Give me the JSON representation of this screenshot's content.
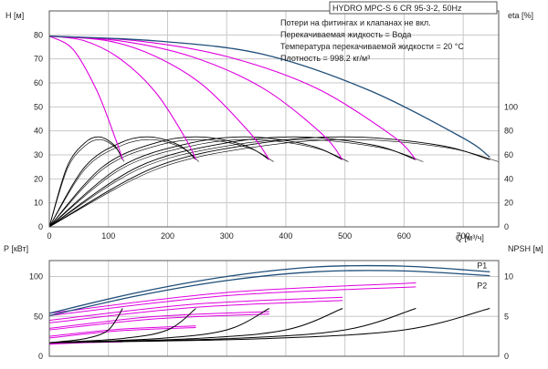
{
  "title": "HYDRO MPC-S 6 CR 95-3-2, 50Hz",
  "notes": [
    "Потери на фитингах и клапанах не вкл.",
    "Перекачиваемая жидкость = Вода",
    "Температура перекачиваемой жидкости = 20 °C",
    "Плотность = 998.2 кг/м³"
  ],
  "colors": {
    "blue": "#1f4e79",
    "magenta": "#e000e0",
    "black": "#000000",
    "grid": "#c8c8c8"
  },
  "chart_data": [
    {
      "type": "line",
      "name": "head-efficiency",
      "xlabel": "Q [м³/ч]",
      "x_ticks": [
        "0",
        "100",
        "200",
        "300",
        "400",
        "500",
        "600",
        "700"
      ],
      "xlim": [
        0,
        760
      ],
      "ylabel_left": "H [м]",
      "ylim_left": [
        0,
        90
      ],
      "y_ticks_left": [
        "0",
        "10",
        "20",
        "30",
        "40",
        "50",
        "60",
        "70",
        "80"
      ],
      "ylabel_right": "eta [%]",
      "ylim_right": [
        0,
        180
      ],
      "y_ticks_right": [
        "0",
        "20",
        "40",
        "60",
        "80",
        "100"
      ],
      "grid": true,
      "head_curves": [
        {
          "pumps": 1,
          "x": [
            0,
            40,
            80,
            110,
            124
          ],
          "y": [
            79.5,
            74,
            57,
            38,
            28
          ]
        },
        {
          "pumps": 2,
          "x": [
            0,
            60,
            120,
            180,
            230,
            248
          ],
          "y": [
            79.5,
            77.5,
            70,
            56,
            37,
            28
          ]
        },
        {
          "pumps": 3,
          "x": [
            0,
            100,
            180,
            260,
            340,
            372
          ],
          "y": [
            79.5,
            77.5,
            71,
            59,
            39,
            28
          ]
        },
        {
          "pumps": 4,
          "x": [
            0,
            120,
            240,
            360,
            460,
            496
          ],
          "y": [
            79.5,
            77.5,
            71,
            58,
            39,
            28
          ]
        },
        {
          "pumps": 5,
          "x": [
            0,
            150,
            300,
            450,
            580,
            620
          ],
          "y": [
            79.5,
            77.5,
            71,
            58,
            38,
            28
          ]
        },
        {
          "pumps": 6,
          "x": [
            0,
            180,
            360,
            540,
            700,
            745
          ],
          "y": [
            79.5,
            77.5,
            72,
            57,
            37,
            29
          ]
        }
      ],
      "efficiency_curves": [
        {
          "pumps": 1,
          "x": [
            0,
            30,
            60,
            85,
            110,
            124
          ],
          "eta": [
            0,
            50,
            70,
            75,
            68,
            56
          ]
        },
        {
          "pumps": 2,
          "x": [
            0,
            60,
            120,
            170,
            220,
            248
          ],
          "eta": [
            0,
            50,
            70,
            75,
            68,
            56
          ]
        },
        {
          "pumps": 3,
          "x": [
            0,
            90,
            180,
            255,
            330,
            372
          ],
          "eta": [
            0,
            50,
            70,
            75,
            68,
            56
          ]
        },
        {
          "pumps": 4,
          "x": [
            0,
            120,
            240,
            340,
            440,
            496
          ],
          "eta": [
            0,
            50,
            70,
            75,
            68,
            56
          ]
        },
        {
          "pumps": 5,
          "x": [
            0,
            150,
            300,
            425,
            550,
            620
          ],
          "eta": [
            0,
            50,
            70,
            75,
            68,
            56
          ]
        },
        {
          "pumps": 6,
          "x": [
            0,
            180,
            360,
            510,
            660,
            745
          ],
          "eta": [
            0,
            50,
            70,
            75,
            68,
            56
          ]
        }
      ]
    },
    {
      "type": "line",
      "name": "power-npsh",
      "ylabel_left": "P [кВт]",
      "ylim_left": [
        0,
        120
      ],
      "y_ticks_left": [
        "0",
        "50",
        "100"
      ],
      "ylabel_right": "NPSH [м]",
      "ylim_right": [
        0,
        12
      ],
      "y_ticks_right": [
        "0",
        "5",
        "10"
      ],
      "xlim": [
        0,
        760
      ],
      "grid": true,
      "series": [
        {
          "name": "P1",
          "x": [
            0,
            150,
            300,
            450,
            600,
            745
          ],
          "y": [
            54,
            80,
            100,
            112,
            113,
            106
          ]
        },
        {
          "name": "P2",
          "x": [
            0,
            150,
            300,
            450,
            600,
            745
          ],
          "y": [
            51,
            76,
            95,
            106,
            107,
            101
          ]
        }
      ],
      "power_curves": [
        {
          "pumps": 1,
          "x": [
            0,
            60,
            124
          ],
          "p1": [
            16,
            18,
            19
          ],
          "p2": [
            15,
            17,
            18
          ]
        },
        {
          "pumps": 2,
          "x": [
            0,
            120,
            248
          ],
          "p1": [
            25,
            34,
            38
          ],
          "p2": [
            23,
            32,
            36
          ]
        },
        {
          "pumps": 3,
          "x": [
            0,
            180,
            372
          ],
          "p1": [
            35,
            50,
            56
          ],
          "p2": [
            33,
            47,
            53
          ]
        },
        {
          "pumps": 4,
          "x": [
            0,
            240,
            496
          ],
          "p1": [
            45,
            65,
            74
          ],
          "p2": [
            42,
            61,
            70
          ]
        },
        {
          "pumps": 5,
          "x": [
            0,
            300,
            620
          ],
          "p1": [
            54,
            80,
            92
          ],
          "p2": [
            51,
            76,
            87
          ]
        }
      ],
      "npsh_curves": [
        {
          "pumps": 1,
          "x": [
            0,
            60,
            100,
            124
          ],
          "npsh": [
            1.7,
            2.2,
            3.3,
            6.0
          ]
        },
        {
          "pumps": 2,
          "x": [
            0,
            120,
            200,
            248
          ],
          "npsh": [
            1.7,
            2.2,
            3.3,
            6.0
          ]
        },
        {
          "pumps": 3,
          "x": [
            0,
            180,
            300,
            372
          ],
          "npsh": [
            1.7,
            2.2,
            3.3,
            6.0
          ]
        },
        {
          "pumps": 4,
          "x": [
            0,
            240,
            400,
            496
          ],
          "npsh": [
            1.7,
            2.2,
            3.3,
            6.0
          ]
        },
        {
          "pumps": 5,
          "x": [
            0,
            300,
            500,
            620
          ],
          "npsh": [
            1.7,
            2.2,
            3.3,
            6.0
          ]
        },
        {
          "pumps": 6,
          "x": [
            0,
            360,
            600,
            745
          ],
          "npsh": [
            1.7,
            2.2,
            3.3,
            6.0
          ]
        }
      ]
    }
  ]
}
